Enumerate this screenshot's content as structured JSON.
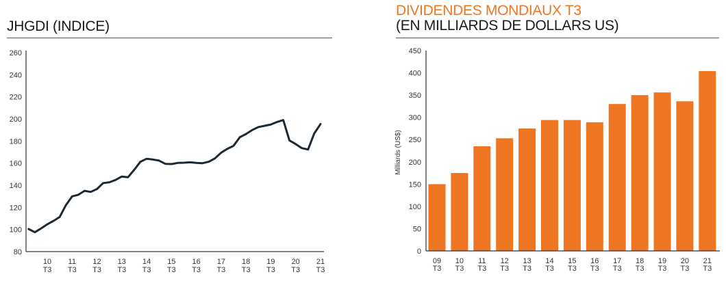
{
  "colors": {
    "line": "#1c2833",
    "bar": "#ee7623",
    "accent_title": "#ee7623",
    "axis": "#333333"
  },
  "chart_data": [
    {
      "type": "line",
      "title": "JHGDI (INDICE)",
      "xlabel": "",
      "ylabel": "",
      "ylim": [
        80,
        260
      ],
      "yticks": [
        80,
        100,
        120,
        140,
        160,
        180,
        200,
        220,
        240,
        260
      ],
      "xticks": [
        {
          "year": 10,
          "label": [
            "10",
            "T3"
          ]
        },
        {
          "year": 11,
          "label": [
            "11",
            "T3"
          ]
        },
        {
          "year": 12,
          "label": [
            "12",
            "T3"
          ]
        },
        {
          "year": 13,
          "label": [
            "13",
            "T3"
          ]
        },
        {
          "year": 14,
          "label": [
            "14",
            "T3"
          ]
        },
        {
          "year": 15,
          "label": [
            "15",
            "T3"
          ]
        },
        {
          "year": 16,
          "label": [
            "16",
            "T3"
          ]
        },
        {
          "year": 17,
          "label": [
            "17",
            "T3"
          ]
        },
        {
          "year": 18,
          "label": [
            "18",
            "T3"
          ]
        },
        {
          "year": 19,
          "label": [
            "19",
            "T3"
          ]
        },
        {
          "year": 20,
          "label": [
            "20",
            "T3"
          ]
        },
        {
          "year": 21,
          "label": [
            "21",
            "T3"
          ]
        }
      ],
      "grid": false,
      "series": [
        {
          "x_start": "09 T4",
          "frequency": "quarterly",
          "values": [
            100.4,
            97.5,
            101,
            104.7,
            107.8,
            111.3,
            122,
            130,
            131.4,
            135,
            134,
            136.6,
            142,
            142.7,
            144.8,
            147.9,
            147.3,
            154,
            161.3,
            164,
            163.3,
            162.3,
            159.4,
            159.2,
            160.2,
            160.4,
            160.8,
            160.2,
            160,
            161.3,
            164.3,
            169.5,
            173,
            175.7,
            183.5,
            186.4,
            190,
            192.7,
            193.8,
            195,
            197.3,
            199,
            180.6,
            177.3,
            173.6,
            172.4,
            187,
            195.4
          ]
        }
      ]
    },
    {
      "type": "bar",
      "title": "DIVIDENDES MONDIAUX T3",
      "subtitle": "(EN MILLIARDS DE DOLLARS US)",
      "xlabel": "",
      "ylabel": "Milliards (US$)",
      "ylim": [
        0,
        450
      ],
      "yticks": [
        0,
        50,
        100,
        150,
        200,
        250,
        300,
        350,
        400,
        450
      ],
      "grid": false,
      "categories": [
        [
          "09",
          "T3"
        ],
        [
          "10",
          "T3"
        ],
        [
          "11",
          "T3"
        ],
        [
          "12",
          "T3"
        ],
        [
          "13",
          "T3"
        ],
        [
          "14",
          "T3"
        ],
        [
          "15",
          "T3"
        ],
        [
          "16",
          "T3"
        ],
        [
          "17",
          "T3"
        ],
        [
          "18",
          "T3"
        ],
        [
          "19",
          "T3"
        ],
        [
          "20",
          "T3"
        ],
        [
          "21",
          "T3"
        ]
      ],
      "values": [
        150,
        175,
        235,
        253,
        275,
        294,
        294,
        289,
        330,
        350,
        356,
        336,
        404
      ]
    }
  ]
}
